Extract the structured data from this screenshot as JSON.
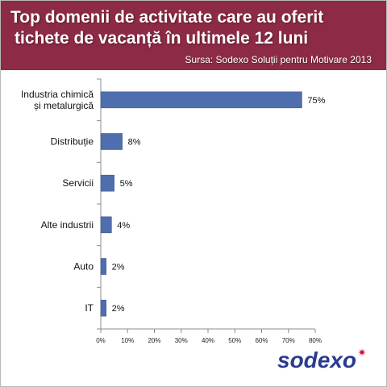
{
  "header": {
    "title_line1": "Top domenii de activitate care au oferit",
    "title_line2": "tichete de vacanță în ultimele 12 luni",
    "source": "Sursa: Sodexo Soluții pentru Motivare 2013",
    "background_color": "#8d2a45"
  },
  "logo": {
    "text": "sodexo",
    "color": "#2a3b8f",
    "star_color": "#c8102e"
  },
  "chart_data": {
    "type": "bar",
    "orientation": "horizontal",
    "categories": [
      "Industria chimică și metalurgică",
      "Distribuție",
      "Servicii",
      "Alte industrii",
      "Auto",
      "IT"
    ],
    "category_lines": [
      [
        "Industria chimică",
        "și metalurgică"
      ],
      [
        "Distribuție"
      ],
      [
        "Servicii"
      ],
      [
        "Alte industrii"
      ],
      [
        "Auto"
      ],
      [
        "IT"
      ]
    ],
    "values": [
      75,
      8,
      5,
      4,
      2,
      2
    ],
    "value_labels": [
      "75%",
      "8%",
      "5%",
      "4%",
      "2%",
      "2%"
    ],
    "x_ticks": [
      "0%",
      "10%",
      "20%",
      "30%",
      "40%",
      "50%",
      "60%",
      "70%",
      "80%"
    ],
    "xlim": [
      0,
      80
    ],
    "bar_color": "#4f6ead",
    "grid": false,
    "legend": "none"
  }
}
